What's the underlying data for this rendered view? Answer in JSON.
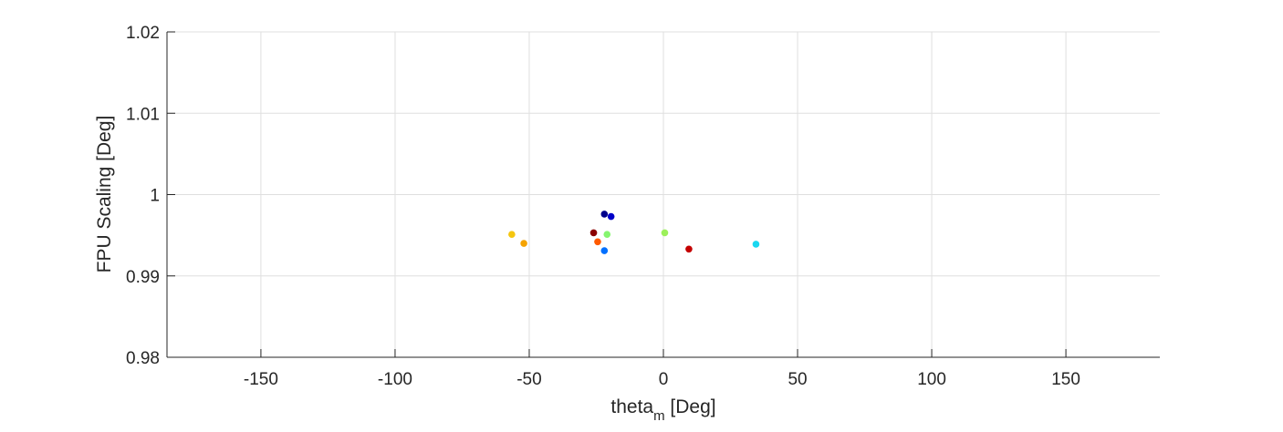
{
  "chart_data": {
    "type": "scatter",
    "title": "",
    "xlabel": {
      "main": "theta",
      "subscript": "m",
      "suffix": " [Deg]"
    },
    "ylabel": "FPU Scaling [Deg]",
    "xlim": [
      -185,
      185
    ],
    "ylim": [
      0.98,
      1.02
    ],
    "xticks": [
      -150,
      -100,
      -50,
      0,
      50,
      100,
      150
    ],
    "xtick_labels": [
      "-150",
      "-100",
      "-50",
      "0",
      "50",
      "100",
      "150"
    ],
    "yticks": [
      0.98,
      0.99,
      1.0,
      1.01,
      1.02
    ],
    "ytick_labels": [
      "0.98",
      "0.99",
      "1",
      "1.01",
      "1.02"
    ],
    "grid": true,
    "legend": "none",
    "points": [
      {
        "x": -56.5,
        "y": 0.9951,
        "color": "#f5c60f"
      },
      {
        "x": -52.0,
        "y": 0.994,
        "color": "#f5a300"
      },
      {
        "x": -26.0,
        "y": 0.9953,
        "color": "#8b0000"
      },
      {
        "x": -24.5,
        "y": 0.9942,
        "color": "#ff5a00"
      },
      {
        "x": -22.0,
        "y": 0.9976,
        "color": "#00008b"
      },
      {
        "x": -22.0,
        "y": 0.9931,
        "color": "#0070ff"
      },
      {
        "x": -21.0,
        "y": 0.9951,
        "color": "#86f56f"
      },
      {
        "x": -19.5,
        "y": 0.9973,
        "color": "#0000c8"
      },
      {
        "x": 0.5,
        "y": 0.9953,
        "color": "#9cf05a"
      },
      {
        "x": 9.5,
        "y": 0.9933,
        "color": "#c40000"
      },
      {
        "x": 34.5,
        "y": 0.9939,
        "color": "#1ad7f0"
      }
    ]
  }
}
